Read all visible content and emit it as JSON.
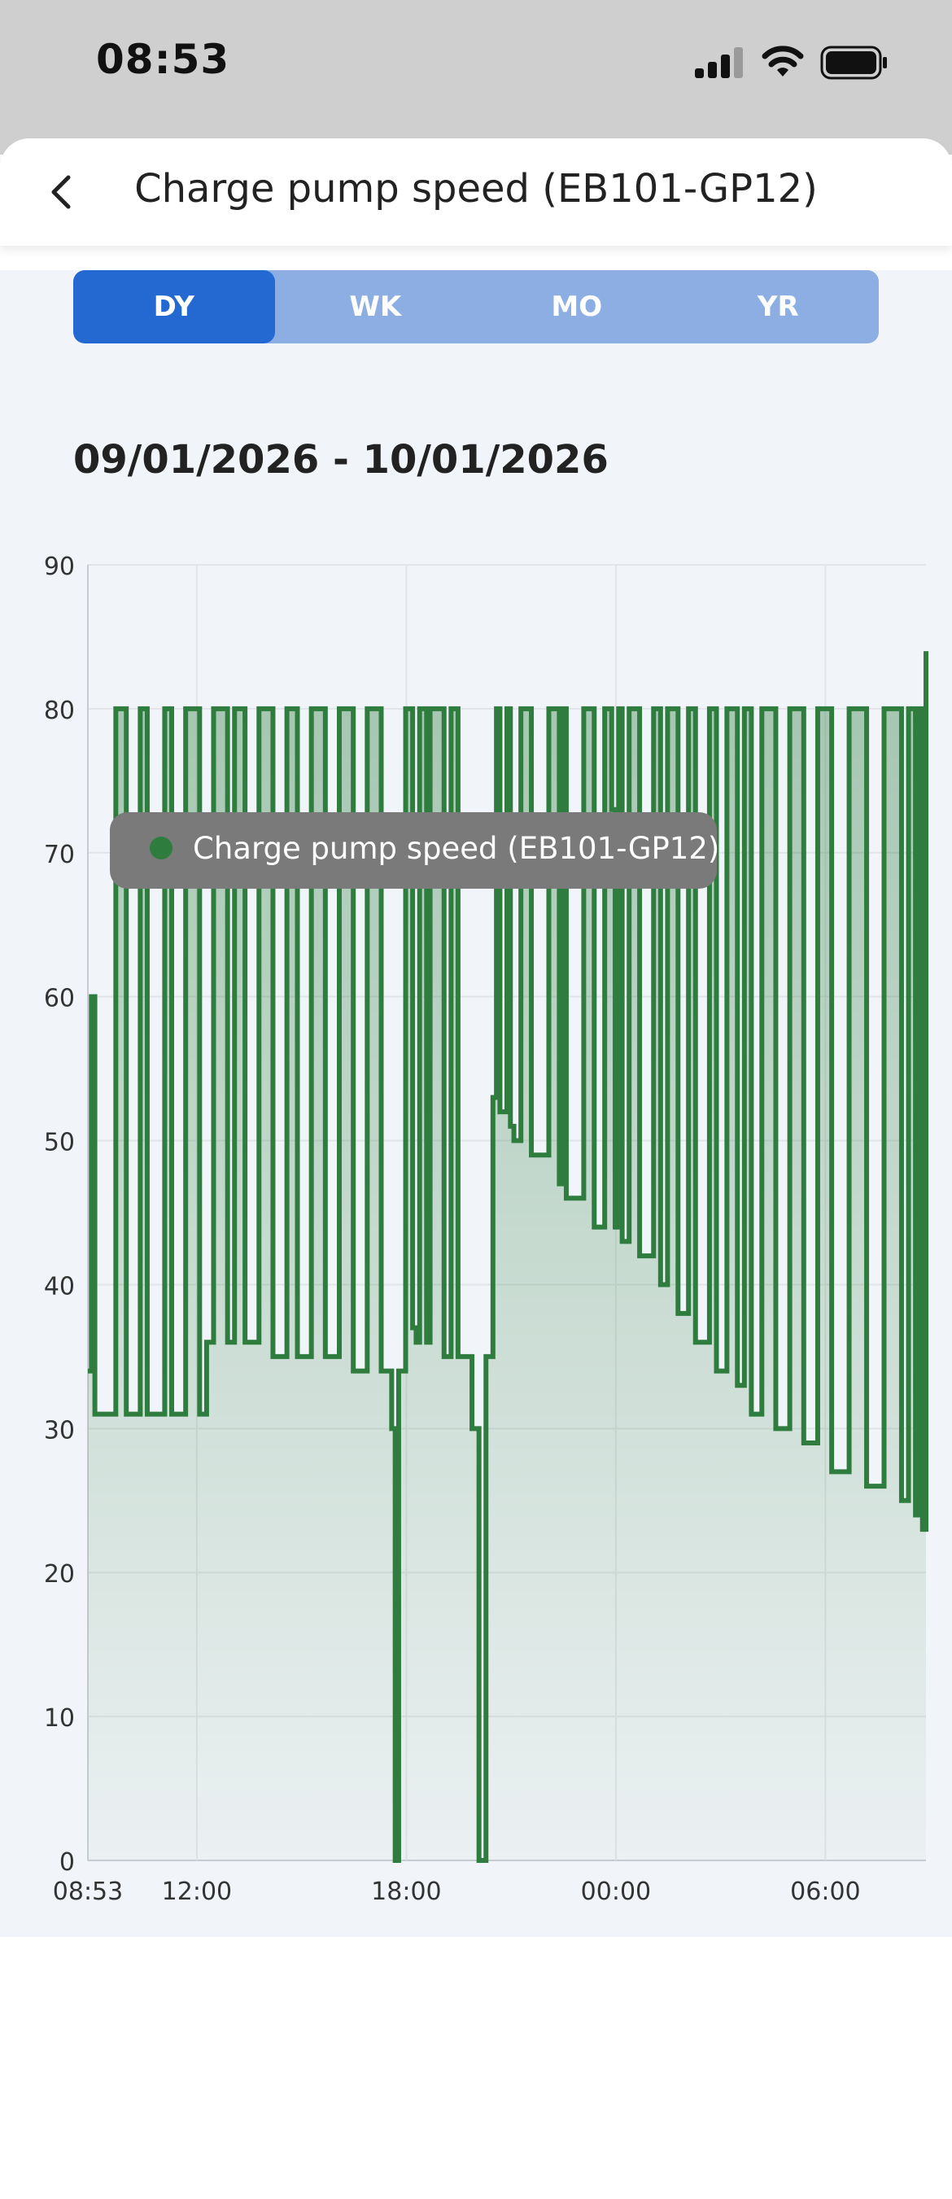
{
  "status_bar": {
    "time": "08:53"
  },
  "header": {
    "title": "Charge pump speed (EB101-GP12)"
  },
  "period_tabs": [
    {
      "label": "DY",
      "active": true
    },
    {
      "label": "WK",
      "active": false
    },
    {
      "label": "MO",
      "active": false
    },
    {
      "label": "YR",
      "active": false
    }
  ],
  "date_range": "09/01/2026 - 10/01/2026",
  "colors": {
    "accent": "#2469d1",
    "tab_bg": "#8daee3",
    "series": "#2e7d3f",
    "legend_bg": "#7a7a7a"
  },
  "chart_data": {
    "type": "area",
    "title": "",
    "xlabel": "",
    "ylabel": "",
    "x_tick_labels": [
      "08:53",
      "12:00",
      "18:00",
      "00:00",
      "06:00"
    ],
    "x_tick_hours": [
      0,
      3.12,
      9.12,
      15.12,
      21.12
    ],
    "xlim_hours": [
      0,
      24
    ],
    "ylim": [
      0,
      90
    ],
    "y_ticks": [
      0,
      10,
      20,
      30,
      40,
      50,
      60,
      70,
      80,
      90
    ],
    "grid": true,
    "legend_position": "top",
    "series": [
      {
        "name": "Charge pump speed (EB101-GP12)",
        "color": "#2e7d3f",
        "step": true,
        "x_hours": [
          0,
          0.1,
          0.2,
          0.8,
          1.1,
          1.5,
          1.7,
          2.2,
          2.4,
          2.8,
          3.2,
          3.4,
          3.6,
          4.0,
          4.2,
          4.5,
          4.9,
          5.3,
          5.7,
          6.0,
          6.4,
          6.8,
          7.2,
          7.6,
          8.0,
          8.4,
          8.7,
          8.8,
          8.9,
          9.1,
          9.3,
          9.4,
          9.5,
          9.7,
          9.8,
          10.2,
          10.4,
          10.6,
          11.0,
          11.2,
          11.4,
          11.6,
          11.7,
          11.8,
          12.0,
          12.1,
          12.2,
          12.4,
          12.7,
          13.2,
          13.5,
          13.6,
          13.7,
          14.2,
          14.5,
          14.8,
          15.0,
          15.1,
          15.2,
          15.3,
          15.5,
          15.8,
          16.2,
          16.4,
          16.6,
          16.9,
          17.2,
          17.4,
          17.8,
          18.0,
          18.3,
          18.6,
          18.8,
          19.0,
          19.3,
          19.7,
          20.1,
          20.5,
          20.9,
          21.3,
          21.8,
          22.3,
          22.8,
          23.3,
          23.5,
          23.7,
          23.8,
          23.9,
          24.0
        ],
        "values": [
          34,
          60,
          31,
          80,
          31,
          80,
          31,
          80,
          31,
          80,
          31,
          36,
          80,
          36,
          80,
          36,
          80,
          35,
          80,
          35,
          80,
          35,
          80,
          34,
          80,
          34,
          30,
          0,
          34,
          80,
          37,
          36,
          80,
          36,
          80,
          35,
          80,
          35,
          30,
          0,
          35,
          53,
          80,
          52,
          80,
          51,
          50,
          80,
          49,
          80,
          47,
          80,
          46,
          80,
          44,
          80,
          73,
          44,
          80,
          43,
          80,
          42,
          80,
          40,
          80,
          38,
          80,
          36,
          80,
          34,
          80,
          33,
          80,
          31,
          80,
          30,
          80,
          29,
          80,
          27,
          80,
          26,
          80,
          25,
          80,
          24,
          80,
          23,
          84
        ]
      }
    ]
  }
}
